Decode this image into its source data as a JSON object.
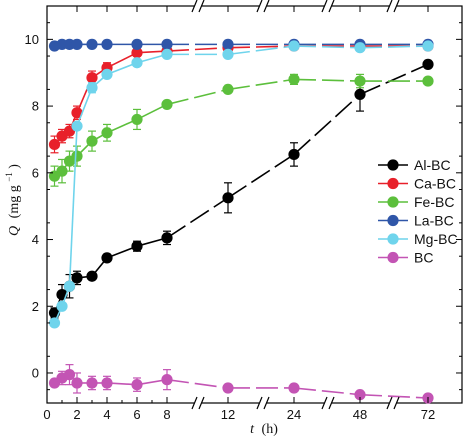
{
  "chart_data": {
    "type": "line",
    "xlabel": {
      "var": "t",
      "unit": "(h)"
    },
    "ylabel": {
      "var": "Q",
      "unit": "(mg g",
      "sup": "−1",
      "close": ")"
    },
    "x_ticks": [
      0,
      2,
      4,
      6,
      8,
      12,
      24,
      48,
      72
    ],
    "y_ticks": [
      0,
      2,
      4,
      6,
      8,
      10
    ],
    "xlim": [
      0,
      72
    ],
    "ylim": [
      -0.9,
      11.0
    ],
    "x_axis_breaks": [
      "between 8 and 12",
      "between 12 and 24",
      "between 24 and 48",
      "between 48 and 72"
    ],
    "legend_position": "right-center",
    "series": [
      {
        "name": "Al-BC",
        "color": "#000000",
        "x": [
          0.5,
          1,
          1.5,
          2,
          3,
          4,
          6,
          8,
          12,
          24,
          48,
          72
        ],
        "y": [
          1.8,
          2.35,
          2.6,
          2.85,
          2.9,
          3.45,
          3.8,
          4.05,
          5.25,
          6.55,
          8.35,
          9.25
        ],
        "err": [
          0.15,
          0.3,
          0.35,
          0.2,
          0.1,
          0.1,
          0.15,
          0.2,
          0.45,
          0.35,
          0.5,
          0.1
        ]
      },
      {
        "name": "Ca-BC",
        "color": "#e8202a",
        "x": [
          0.5,
          1,
          1.5,
          2,
          3,
          4,
          6,
          8,
          12,
          24,
          48,
          72
        ],
        "y": [
          6.85,
          7.1,
          7.25,
          7.8,
          8.85,
          9.15,
          9.6,
          9.65,
          9.75,
          9.8,
          9.8,
          9.8
        ],
        "err": [
          0.25,
          0.2,
          0.2,
          0.2,
          0.2,
          0.15,
          0.1,
          0.1,
          0.1,
          0.1,
          0.1,
          0.1
        ]
      },
      {
        "name": "Fe-BC",
        "color": "#5cbf3c",
        "x": [
          0.5,
          1,
          1.5,
          2,
          3,
          4,
          6,
          8,
          12,
          24,
          48,
          72
        ],
        "y": [
          5.9,
          6.05,
          6.35,
          6.5,
          6.95,
          7.2,
          7.6,
          8.05,
          8.5,
          8.8,
          8.75,
          8.75
        ],
        "err": [
          0.3,
          0.35,
          0.3,
          0.3,
          0.3,
          0.25,
          0.3,
          0.1,
          0.1,
          0.15,
          0.2,
          0.1
        ]
      },
      {
        "name": "La-BC",
        "color": "#2f56a8",
        "x": [
          0.5,
          1,
          1.5,
          2,
          3,
          4,
          6,
          8,
          12,
          24,
          48,
          72
        ],
        "y": [
          9.8,
          9.85,
          9.85,
          9.85,
          9.85,
          9.85,
          9.85,
          9.85,
          9.85,
          9.85,
          9.85,
          9.85
        ],
        "err": [
          0.05,
          0.05,
          0.05,
          0.05,
          0.05,
          0.05,
          0.05,
          0.05,
          0.05,
          0.05,
          0.05,
          0.05
        ]
      },
      {
        "name": "Mg-BC",
        "color": "#6fd4ec",
        "x": [
          0.5,
          1,
          1.5,
          2,
          3,
          4,
          6,
          8,
          12,
          24,
          48,
          72
        ],
        "y": [
          1.5,
          2.0,
          2.6,
          7.4,
          8.55,
          8.95,
          9.3,
          9.55,
          9.55,
          9.8,
          9.75,
          9.8
        ],
        "err": [
          0.05,
          0.1,
          0.1,
          0.1,
          0.15,
          0.1,
          0.1,
          0.1,
          0.1,
          0.1,
          0.1,
          0.1
        ]
      },
      {
        "name": "BC",
        "color": "#c354b4",
        "x": [
          0.5,
          1,
          1.5,
          2,
          3,
          4,
          6,
          8,
          12,
          24,
          48,
          72
        ],
        "y": [
          -0.3,
          -0.15,
          -0.05,
          -0.3,
          -0.3,
          -0.3,
          -0.35,
          -0.2,
          -0.45,
          -0.45,
          -0.65,
          -0.75
        ],
        "err": [
          0.1,
          0.2,
          0.3,
          0.3,
          0.2,
          0.2,
          0.2,
          0.3,
          0.1,
          0.05,
          0.05,
          0.05
        ]
      }
    ]
  }
}
